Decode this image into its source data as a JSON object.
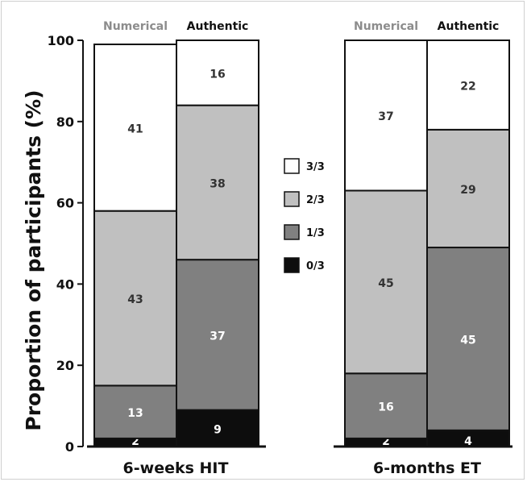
{
  "chart_data": {
    "type": "bar",
    "stacked": true,
    "ylabel": "Proportion of participants (%)",
    "ylim": [
      0,
      100
    ],
    "yticks": [
      0,
      20,
      40,
      60,
      80,
      100
    ],
    "grid": false,
    "legend": {
      "placement": "center",
      "entries": [
        {
          "label": "3/3",
          "color": "#ffffff"
        },
        {
          "label": "2/3",
          "color": "#c0c0c0"
        },
        {
          "label": "1/3",
          "color": "#808080"
        },
        {
          "label": "0/3",
          "color": "#0d0d0d"
        }
      ]
    },
    "groups": [
      {
        "label": "6-weeks HIT",
        "bars": [
          {
            "label": "Numerical",
            "label_color": "#8c8c8c",
            "segments": [
              {
                "series": "0/3",
                "value": 2
              },
              {
                "series": "1/3",
                "value": 13
              },
              {
                "series": "2/3",
                "value": 43
              },
              {
                "series": "3/3",
                "value": 41
              }
            ]
          },
          {
            "label": "Authentic",
            "label_color": "#111111",
            "segments": [
              {
                "series": "0/3",
                "value": 9
              },
              {
                "series": "1/3",
                "value": 37
              },
              {
                "series": "2/3",
                "value": 38
              },
              {
                "series": "3/3",
                "value": 16
              }
            ]
          }
        ]
      },
      {
        "label": "6-months ET",
        "bars": [
          {
            "label": "Numerical",
            "label_color": "#8c8c8c",
            "segments": [
              {
                "series": "0/3",
                "value": 2
              },
              {
                "series": "1/3",
                "value": 16
              },
              {
                "series": "2/3",
                "value": 45
              },
              {
                "series": "3/3",
                "value": 37
              }
            ]
          },
          {
            "label": "Authentic",
            "label_color": "#111111",
            "segments": [
              {
                "series": "0/3",
                "value": 4
              },
              {
                "series": "1/3",
                "value": 45
              },
              {
                "series": "2/3",
                "value": 29
              },
              {
                "series": "3/3",
                "value": 22
              }
            ]
          }
        ]
      }
    ]
  }
}
